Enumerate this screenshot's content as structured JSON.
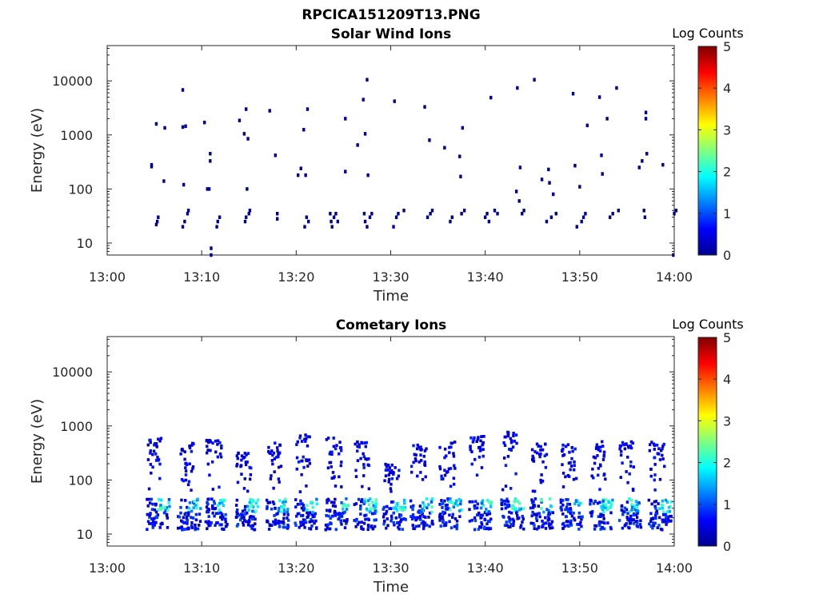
{
  "figure": {
    "title": "RPCICA151209T13.PNG"
  },
  "chart_data": [
    {
      "type": "heatmap",
      "title": "Solar Wind Ions",
      "xlabel": "Time",
      "ylabel": "Energy (eV)",
      "x_ticks": [
        "13:00",
        "13:10",
        "13:20",
        "13:30",
        "13:40",
        "13:50",
        "14:00"
      ],
      "x_range_minutes": [
        0,
        60
      ],
      "y_scale": "log",
      "y_ticks": [
        10,
        100,
        1000,
        10000
      ],
      "y_tick_labels": [
        "10",
        "100",
        "1000",
        "10000"
      ],
      "y_range": [
        6,
        45000
      ],
      "colorbar": {
        "label": "Log Counts",
        "ticks": [
          "0",
          "1",
          "2",
          "3",
          "4",
          "5"
        ],
        "range": [
          0,
          5
        ],
        "colormap": "jet"
      },
      "points": [
        [
          4.7,
          280,
          0.1
        ],
        [
          4.7,
          260,
          0.1
        ],
        [
          5.2,
          1600,
          0.1
        ],
        [
          5.4,
          30,
          0.1
        ],
        [
          5.3,
          25,
          0.1
        ],
        [
          5.2,
          22,
          0.1
        ],
        [
          6.0,
          140,
          0.1
        ],
        [
          6.1,
          1350,
          0.1
        ],
        [
          8.0,
          6800,
          0.1
        ],
        [
          8.0,
          1400,
          0.1
        ],
        [
          8.1,
          120,
          0.1
        ],
        [
          8.0,
          20,
          0.1
        ],
        [
          8.2,
          25,
          0.1
        ],
        [
          8.5,
          35,
          0.1
        ],
        [
          8.6,
          40,
          0.1
        ],
        [
          8.3,
          1450,
          0.1
        ],
        [
          10.3,
          1700,
          0.1
        ],
        [
          10.6,
          100,
          0.1
        ],
        [
          10.8,
          100,
          0.1
        ],
        [
          10.9,
          450,
          0.1
        ],
        [
          10.9,
          330,
          0.1
        ],
        [
          11.0,
          6,
          0.1
        ],
        [
          11.0,
          8,
          0.1
        ],
        [
          11.6,
          20,
          0.1
        ],
        [
          11.7,
          25,
          0.1
        ],
        [
          11.9,
          30,
          0.1
        ],
        [
          14.0,
          1850,
          0.1
        ],
        [
          14.5,
          1050,
          0.1
        ],
        [
          14.7,
          3000,
          0.1
        ],
        [
          14.8,
          100,
          0.1
        ],
        [
          14.9,
          850,
          0.1
        ],
        [
          14.6,
          25,
          0.1
        ],
        [
          14.7,
          30,
          0.1
        ],
        [
          15.0,
          35,
          0.1
        ],
        [
          15.1,
          40,
          0.1
        ],
        [
          17.2,
          2800,
          0.1
        ],
        [
          17.8,
          420,
          0.1
        ],
        [
          18.0,
          35,
          0.1
        ],
        [
          18.0,
          28,
          0.1
        ],
        [
          20.2,
          180,
          0.1
        ],
        [
          20.5,
          240,
          0.1
        ],
        [
          20.8,
          1250,
          0.1
        ],
        [
          21.0,
          180,
          0.1
        ],
        [
          21.2,
          3000,
          0.1
        ],
        [
          20.9,
          20,
          0.1
        ],
        [
          21.1,
          30,
          0.1
        ],
        [
          21.3,
          25,
          0.1
        ],
        [
          23.6,
          35,
          0.1
        ],
        [
          23.7,
          25,
          0.1
        ],
        [
          23.8,
          20,
          0.1
        ],
        [
          24.0,
          30,
          0.1
        ],
        [
          24.2,
          35,
          0.1
        ],
        [
          24.4,
          25,
          0.1
        ],
        [
          25.2,
          2000,
          0.1
        ],
        [
          25.2,
          210,
          0.1
        ],
        [
          26.5,
          650,
          0.1
        ],
        [
          27.1,
          4500,
          0.1
        ],
        [
          27.3,
          1050,
          0.1
        ],
        [
          27.5,
          10500,
          0.1
        ],
        [
          27.6,
          180,
          0.1
        ],
        [
          27.2,
          35,
          0.1
        ],
        [
          27.3,
          25,
          0.1
        ],
        [
          27.5,
          20,
          0.1
        ],
        [
          27.8,
          30,
          0.1
        ],
        [
          28.0,
          35,
          0.1
        ],
        [
          30.4,
          4200,
          0.1
        ],
        [
          30.3,
          20,
          0.1
        ],
        [
          30.6,
          30,
          0.1
        ],
        [
          30.8,
          35,
          0.1
        ],
        [
          31.4,
          40,
          0.1
        ],
        [
          33.6,
          3300,
          0.1
        ],
        [
          34.1,
          800,
          0.1
        ],
        [
          35.7,
          580,
          0.1
        ],
        [
          33.9,
          30,
          0.1
        ],
        [
          34.2,
          35,
          0.1
        ],
        [
          34.4,
          40,
          0.1
        ],
        [
          36.3,
          25,
          0.1
        ],
        [
          36.5,
          30,
          0.1
        ],
        [
          37.3,
          400,
          0.1
        ],
        [
          37.4,
          170,
          0.1
        ],
        [
          37.6,
          1350,
          0.1
        ],
        [
          37.5,
          35,
          0.1
        ],
        [
          37.8,
          40,
          0.1
        ],
        [
          40.0,
          30,
          0.1
        ],
        [
          40.2,
          35,
          0.1
        ],
        [
          40.4,
          25,
          0.1
        ],
        [
          40.6,
          4900,
          0.1
        ],
        [
          41.0,
          40,
          0.1
        ],
        [
          41.3,
          35,
          0.1
        ],
        [
          43.4,
          7400,
          0.1
        ],
        [
          43.3,
          90,
          0.1
        ],
        [
          43.7,
          250,
          0.1
        ],
        [
          43.6,
          60,
          0.1
        ],
        [
          43.9,
          35,
          0.1
        ],
        [
          44.1,
          40,
          0.1
        ],
        [
          45.2,
          10500,
          0.1
        ],
        [
          46.0,
          150,
          0.1
        ],
        [
          46.7,
          230,
          0.1
        ],
        [
          46.8,
          130,
          0.1
        ],
        [
          47.0,
          30,
          0.1
        ],
        [
          47.2,
          80,
          0.1
        ],
        [
          47.5,
          35,
          0.1
        ],
        [
          46.5,
          25,
          0.1
        ],
        [
          49.3,
          5800,
          0.1
        ],
        [
          49.5,
          270,
          0.1
        ],
        [
          50.0,
          110,
          0.1
        ],
        [
          50.4,
          30,
          0.1
        ],
        [
          50.8,
          1500,
          0.1
        ],
        [
          49.7,
          20,
          0.1
        ],
        [
          50.2,
          25,
          0.1
        ],
        [
          50.6,
          35,
          0.1
        ],
        [
          52.1,
          5000,
          0.1
        ],
        [
          52.3,
          420,
          0.1
        ],
        [
          52.4,
          190,
          0.1
        ],
        [
          52.9,
          2000,
          0.1
        ],
        [
          53.2,
          30,
          0.1
        ],
        [
          53.5,
          35,
          0.1
        ],
        [
          53.9,
          7400,
          0.1
        ],
        [
          54.1,
          40,
          0.1
        ],
        [
          56.3,
          250,
          0.1
        ],
        [
          56.6,
          330,
          0.1
        ],
        [
          56.8,
          40,
          0.1
        ],
        [
          56.9,
          30,
          0.1
        ],
        [
          57.0,
          2600,
          0.1
        ],
        [
          57.0,
          2000,
          0.1
        ],
        [
          57.1,
          450,
          0.1
        ],
        [
          58.8,
          280,
          0.1
        ],
        [
          59.9,
          6,
          0.1
        ],
        [
          60.0,
          35,
          0.1
        ],
        [
          60.2,
          40,
          0.1
        ]
      ]
    },
    {
      "type": "heatmap",
      "title": "Cometary Ions",
      "xlabel": "Time",
      "ylabel": "Energy (eV)",
      "x_ticks": [
        "13:00",
        "13:10",
        "13:20",
        "13:30",
        "13:40",
        "13:50",
        "14:00"
      ],
      "x_range_minutes": [
        0,
        60
      ],
      "y_scale": "log",
      "y_ticks": [
        10,
        100,
        1000,
        10000
      ],
      "y_tick_labels": [
        "10",
        "100",
        "1000",
        "10000"
      ],
      "y_range": [
        6,
        45000
      ],
      "colorbar": {
        "label": "Log Counts",
        "ticks": [
          "0",
          "1",
          "2",
          "3",
          "4",
          "5"
        ],
        "range": [
          0,
          5
        ],
        "colormap": "jet"
      },
      "bursts": [
        {
          "t": 4.9,
          "top": 650,
          "peak": 1.9
        },
        {
          "t": 8.2,
          "top": 500,
          "peak": 1.6
        },
        {
          "t": 11.1,
          "top": 550,
          "peak": 1.6
        },
        {
          "t": 14.3,
          "top": 320,
          "peak": 1.5
        },
        {
          "t": 17.5,
          "top": 520,
          "peak": 1.6
        },
        {
          "t": 20.6,
          "top": 700,
          "peak": 1.7
        },
        {
          "t": 23.8,
          "top": 600,
          "peak": 1.9
        },
        {
          "t": 26.8,
          "top": 550,
          "peak": 1.8
        },
        {
          "t": 29.9,
          "top": 200,
          "peak": 1.6
        },
        {
          "t": 32.8,
          "top": 450,
          "peak": 1.7
        },
        {
          "t": 35.8,
          "top": 550,
          "peak": 1.6
        },
        {
          "t": 39.0,
          "top": 650,
          "peak": 1.7
        },
        {
          "t": 42.4,
          "top": 800,
          "peak": 2.1
        },
        {
          "t": 45.5,
          "top": 500,
          "peak": 1.6
        },
        {
          "t": 48.7,
          "top": 450,
          "peak": 1.8
        },
        {
          "t": 51.8,
          "top": 550,
          "peak": 1.6
        },
        {
          "t": 54.8,
          "top": 520,
          "peak": 1.6
        },
        {
          "t": 58.0,
          "top": 500,
          "peak": 1.9
        }
      ]
    }
  ]
}
